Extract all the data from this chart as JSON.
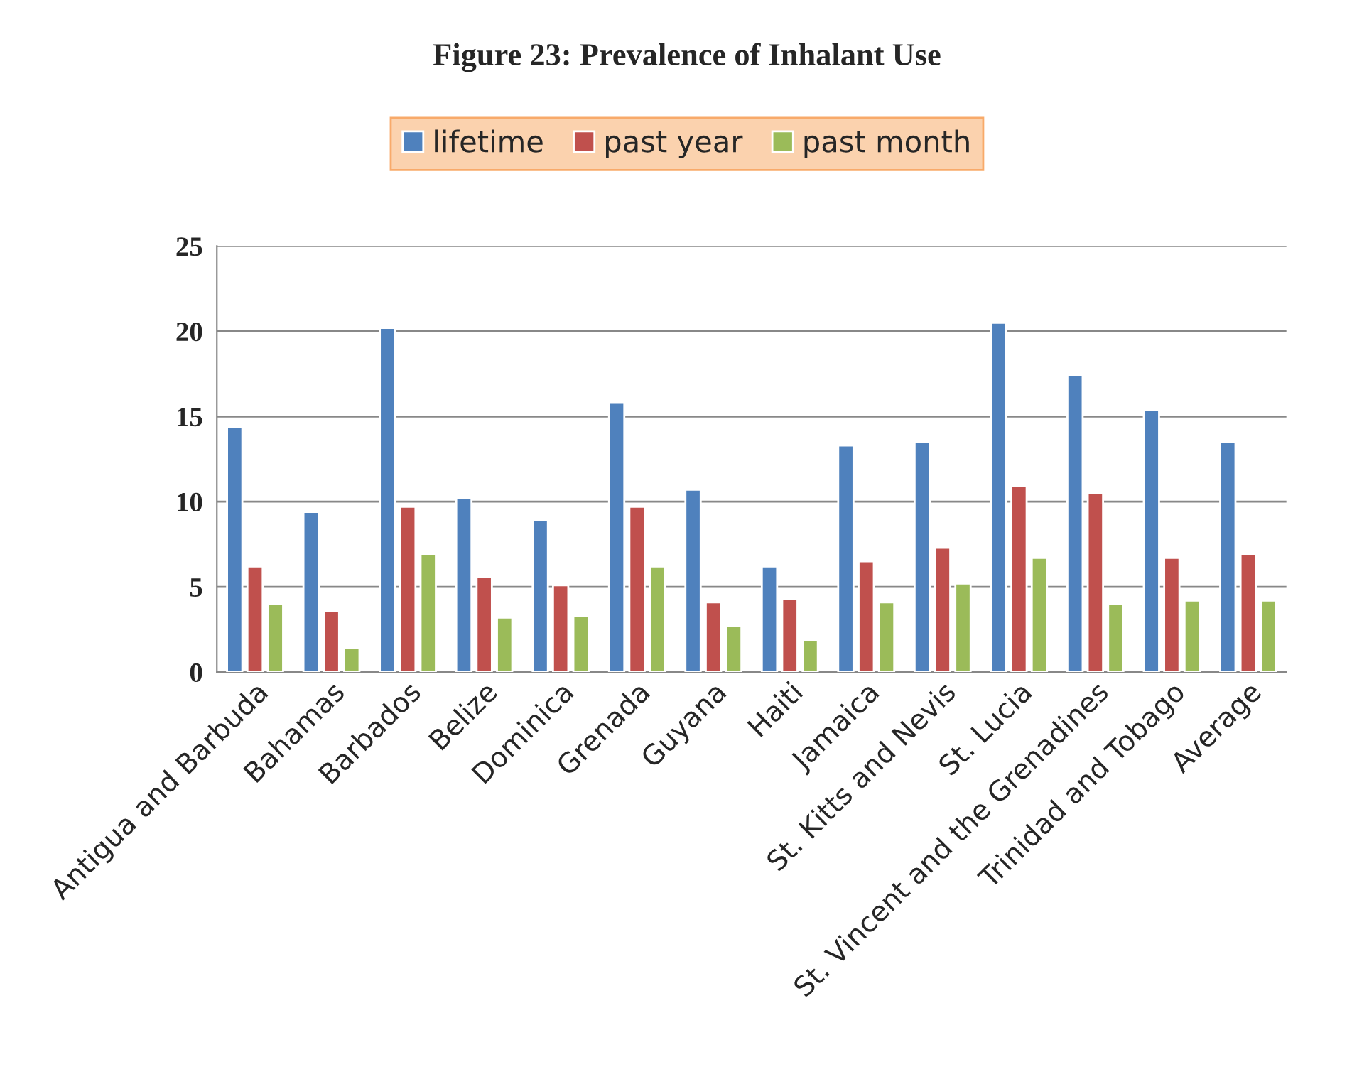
{
  "chart_data": {
    "type": "bar",
    "title": "Figure 23: Prevalence of Inhalant Use",
    "categories": [
      "Antigua and Barbuda",
      "Bahamas",
      "Barbados",
      "Belize",
      "Dominica",
      "Grenada",
      "Guyana",
      "Haiti",
      "Jamaica",
      "St. Kitts and Nevis",
      "St. Lucia",
      "St. Vincent and the Grenadines",
      "Trinidad and Tobago",
      "Average"
    ],
    "series": [
      {
        "name": "lifetime",
        "color": "#4f81bd",
        "values": [
          14.4,
          9.4,
          20.2,
          10.2,
          8.9,
          15.8,
          10.7,
          6.2,
          13.3,
          13.5,
          20.5,
          17.4,
          15.4,
          13.5
        ]
      },
      {
        "name": "past year",
        "color": "#c0504d",
        "values": [
          6.2,
          3.6,
          9.7,
          5.6,
          5.1,
          9.7,
          4.1,
          4.3,
          6.5,
          7.3,
          10.9,
          10.5,
          6.7,
          6.9
        ]
      },
      {
        "name": "past month",
        "color": "#9bbb59",
        "values": [
          4.0,
          1.4,
          6.9,
          3.2,
          3.3,
          6.2,
          2.7,
          1.9,
          4.1,
          5.2,
          6.7,
          4.0,
          4.2,
          4.2
        ]
      }
    ],
    "ylim": [
      0,
      25
    ],
    "yticks": [
      0,
      5,
      10,
      15,
      20,
      25
    ],
    "grid": "y",
    "legend": "top"
  }
}
